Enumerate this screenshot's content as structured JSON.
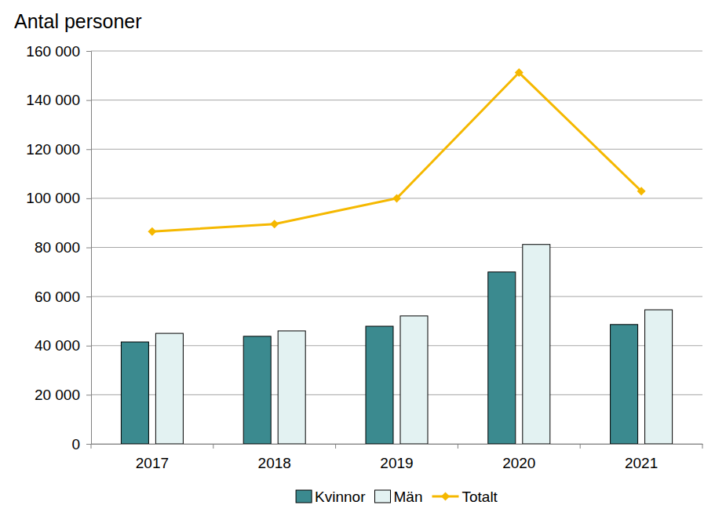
{
  "chart_data": {
    "type": "bar",
    "y_label": "Antal personer",
    "categories": [
      "2017",
      "2018",
      "2019",
      "2020",
      "2021"
    ],
    "series": [
      {
        "name": "Kvinnor",
        "type": "bar",
        "color": "#3b8a8f",
        "values": [
          41500,
          43800,
          47900,
          70000,
          48600
        ]
      },
      {
        "name": "Män",
        "type": "bar",
        "color": "#e3f2f2",
        "values": [
          45000,
          46000,
          52100,
          81200,
          54600
        ]
      },
      {
        "name": "Totalt",
        "type": "line",
        "color": "#f5b800",
        "marker": "diamond",
        "values": [
          86500,
          89500,
          100000,
          151200,
          102900
        ]
      }
    ],
    "ylim": [
      0,
      160000
    ],
    "yticks": [
      0,
      {
        "value": 20000,
        "label": "20 000"
      },
      {
        "value": 40000,
        "label": "40 000"
      },
      {
        "value": 60000,
        "label": "60 000"
      },
      {
        "value": 80000,
        "label": "80 000"
      },
      {
        "value": 100000,
        "label": "100 000"
      },
      {
        "value": 120000,
        "label": "120 000"
      },
      {
        "value": 140000,
        "label": "140 000"
      },
      {
        "value": 160000,
        "label": "160 000"
      }
    ],
    "grid": true,
    "legend": "bottom"
  }
}
